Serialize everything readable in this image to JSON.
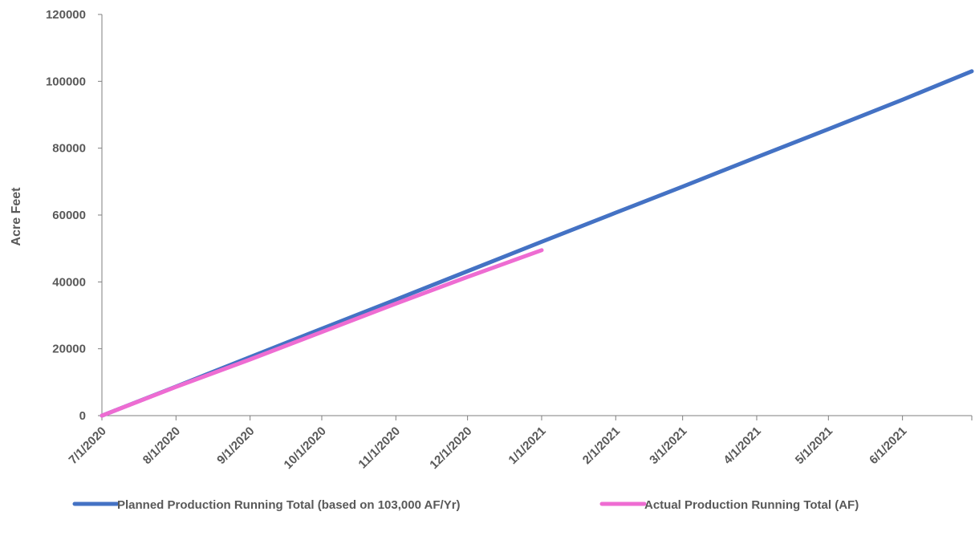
{
  "chart_data": {
    "type": "line",
    "title": "",
    "xlabel": "",
    "ylabel": "Acre Feet",
    "ylim": [
      0,
      120000
    ],
    "yticks": [
      0,
      20000,
      40000,
      60000,
      80000,
      100000,
      120000
    ],
    "xticks": [
      "7/1/2020",
      "8/1/2020",
      "9/1/2020",
      "10/1/2020",
      "11/1/2020",
      "12/1/2020",
      "1/1/2021",
      "2/1/2021",
      "3/1/2021",
      "4/1/2021",
      "5/1/2021",
      "6/1/2021"
    ],
    "xlim": [
      "7/1/2020",
      "6/30/2021"
    ],
    "grid": false,
    "legend_position": "bottom",
    "series": [
      {
        "name": "Planned Production Running Total (based on 103,000 AF/Yr)",
        "color": "#4472C4",
        "x": [
          "7/1/2020",
          "8/1/2020",
          "9/1/2020",
          "10/1/2020",
          "11/1/2020",
          "12/1/2020",
          "1/1/2021",
          "2/1/2021",
          "3/1/2021",
          "4/1/2021",
          "5/1/2021",
          "6/1/2021",
          "6/30/2021"
        ],
        "values": [
          0,
          8700,
          17500,
          26000,
          34700,
          43200,
          52000,
          60700,
          68500,
          77300,
          85700,
          94500,
          103000
        ]
      },
      {
        "name": "Actual Production Running Total (AF)",
        "color": "#EE6CD2",
        "x": [
          "7/1/2020",
          "8/1/2020",
          "9/1/2020",
          "10/1/2020",
          "11/1/2020",
          "12/1/2020",
          "1/1/2021"
        ],
        "values": [
          0,
          8600,
          16800,
          25000,
          33500,
          41500,
          49500
        ]
      }
    ]
  }
}
